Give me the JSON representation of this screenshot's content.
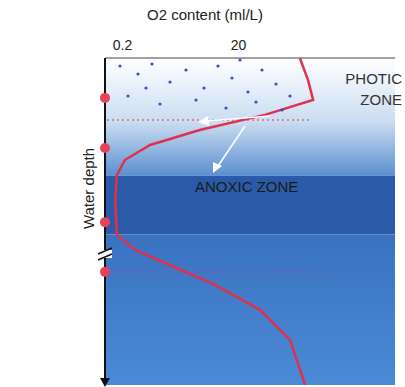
{
  "chart_data": {
    "type": "line",
    "x_label": "O2 content (ml/L)",
    "y_label": "Water depth",
    "log": "x",
    "xlim": [
      0.1,
      10000
    ],
    "xticks": [
      0.2,
      20
    ],
    "ylim": [
      0,
      100
    ],
    "tick_labels": "x",
    "grid": false,
    "color": "#e0304e",
    "x": [
      229,
      316,
      388,
      57,
      4.3,
      0.6,
      0.22,
      0.16,
      0.15,
      0.16,
      0.33,
      1.3,
      7.9,
      47,
      155,
      282
    ],
    "y": [
      0,
      6.7,
      12.8,
      17.4,
      22,
      26.6,
      31.2,
      35.8,
      43.4,
      54.1,
      58.7,
      63.3,
      69.4,
      77,
      86.2,
      100
    ],
    "depth_marks": [
      12.2,
      27.5,
      50.2,
      65.4
    ],
    "depth_mark_color": "#e8425a",
    "zones": [
      {
        "label": "PHOTIC ZONE",
        "from": 0,
        "to": 36,
        "color": "#c9dcf1"
      },
      {
        "label": "ANOXIC ZONE",
        "from": 36,
        "to": 54,
        "color": "#2a5aa8"
      }
    ]
  }
}
